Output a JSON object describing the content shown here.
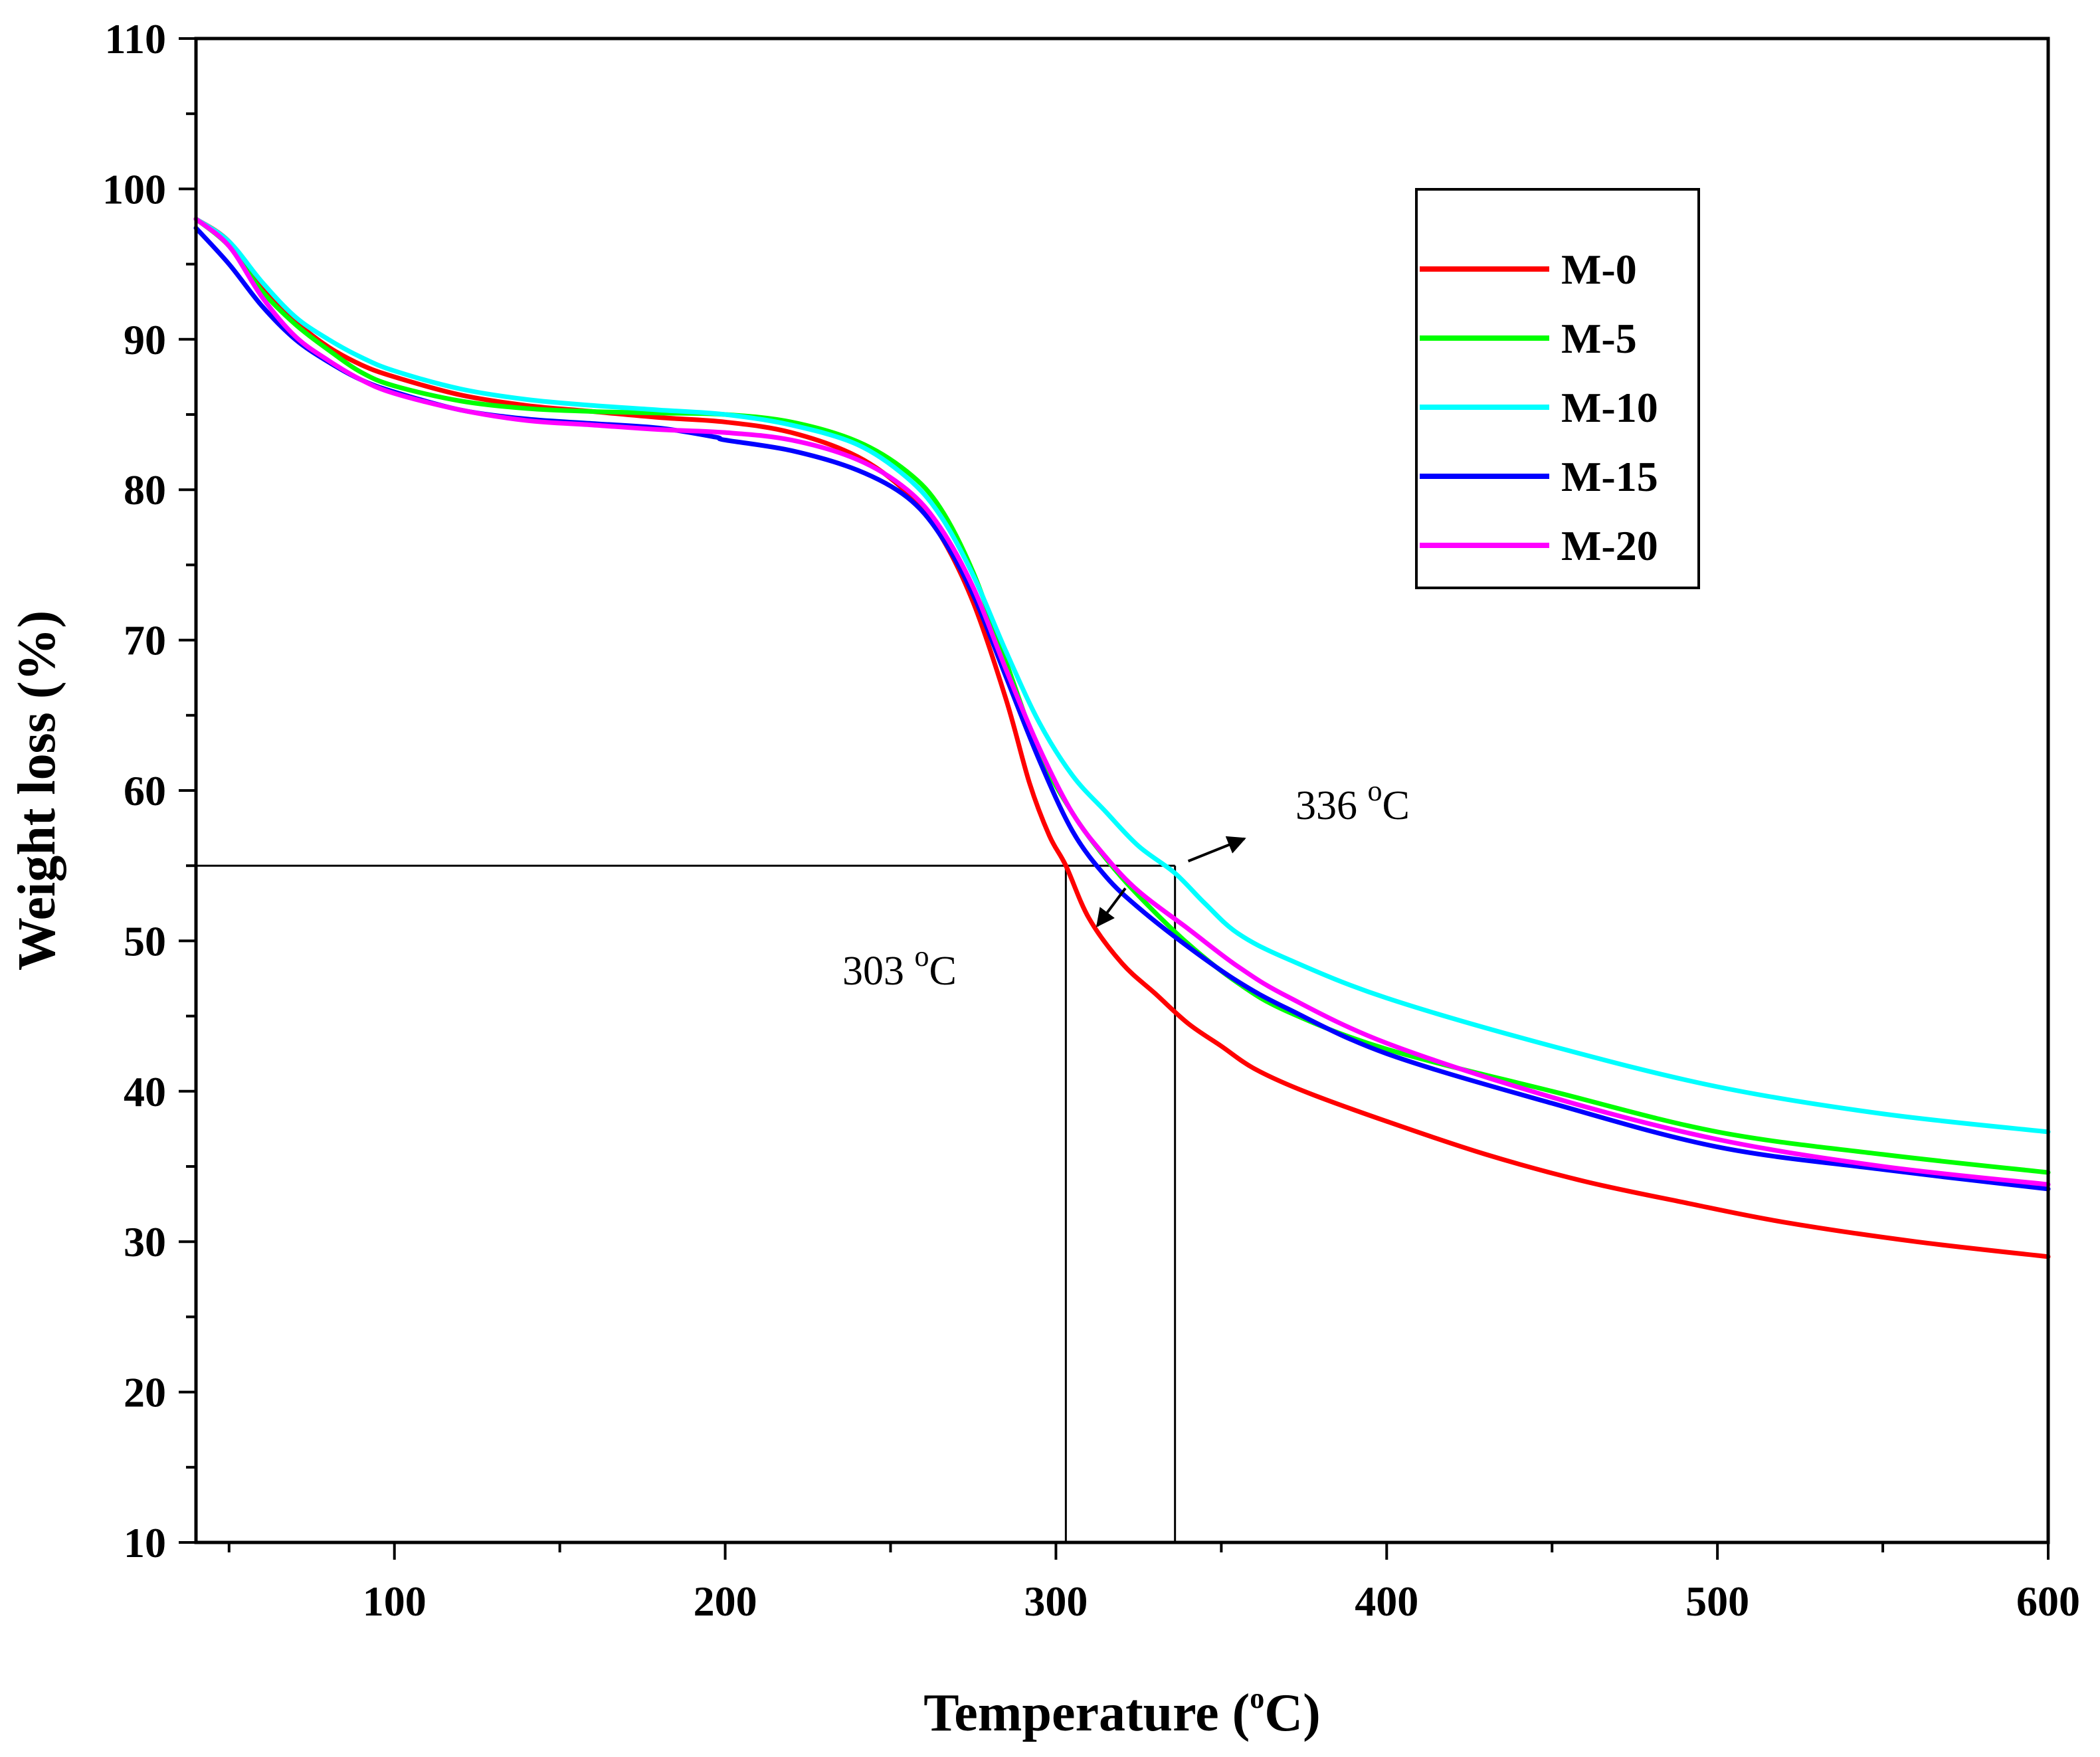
{
  "chart_data": {
    "type": "line",
    "title": "",
    "xlabel": "Temperature (",
    "xlabel_sup": "o",
    "xlabel_end": "C)",
    "ylabel": "Weight loss (%)",
    "xlim": [
      40,
      600
    ],
    "ylim": [
      10,
      110
    ],
    "xticks": [
      100,
      200,
      300,
      400,
      500,
      600
    ],
    "xticks_minor": [
      50,
      150,
      250,
      350,
      450,
      550
    ],
    "yticks": [
      10,
      20,
      30,
      40,
      50,
      60,
      70,
      80,
      90,
      100,
      110
    ],
    "grid": false,
    "legend_position": "top-right",
    "series": [
      {
        "name": "M-0",
        "color": "#ff0000",
        "points": [
          [
            40,
            98
          ],
          [
            50,
            96.5
          ],
          [
            60,
            93.5
          ],
          [
            70,
            91.2
          ],
          [
            80,
            89.5
          ],
          [
            90,
            88.3
          ],
          [
            100,
            87.5
          ],
          [
            120,
            86.3
          ],
          [
            140,
            85.6
          ],
          [
            160,
            85.2
          ],
          [
            180,
            84.8
          ],
          [
            200,
            84.5
          ],
          [
            220,
            83.8
          ],
          [
            240,
            82.2
          ],
          [
            255,
            79.8
          ],
          [
            265,
            77
          ],
          [
            275,
            72.5
          ],
          [
            285,
            66
          ],
          [
            292,
            60.5
          ],
          [
            298,
            57
          ],
          [
            303,
            55
          ],
          [
            310,
            51.5
          ],
          [
            320,
            48.5
          ],
          [
            330,
            46.5
          ],
          [
            340,
            44.5
          ],
          [
            350,
            43
          ],
          [
            360,
            41.5
          ],
          [
            375,
            40
          ],
          [
            400,
            38
          ],
          [
            430,
            35.8
          ],
          [
            460,
            34
          ],
          [
            490,
            32.6
          ],
          [
            520,
            31.3
          ],
          [
            560,
            30
          ],
          [
            600,
            29
          ]
        ]
      },
      {
        "name": "M-5",
        "color": "#00ff00",
        "points": [
          [
            40,
            98
          ],
          [
            50,
            96.2
          ],
          [
            60,
            93.2
          ],
          [
            70,
            91
          ],
          [
            80,
            89.3
          ],
          [
            90,
            87.8
          ],
          [
            100,
            86.9
          ],
          [
            120,
            85.9
          ],
          [
            140,
            85.4
          ],
          [
            160,
            85.2
          ],
          [
            180,
            85.1
          ],
          [
            200,
            85
          ],
          [
            220,
            84.5
          ],
          [
            240,
            83.2
          ],
          [
            255,
            81.2
          ],
          [
            265,
            78.8
          ],
          [
            275,
            74.5
          ],
          [
            285,
            68.5
          ],
          [
            295,
            62.5
          ],
          [
            305,
            58.5
          ],
          [
            315,
            55.5
          ],
          [
            325,
            53
          ],
          [
            340,
            49.8
          ],
          [
            355,
            47.2
          ],
          [
            370,
            45.3
          ],
          [
            400,
            42.8
          ],
          [
            450,
            40
          ],
          [
            500,
            37.3
          ],
          [
            550,
            35.8
          ],
          [
            600,
            34.6
          ]
        ]
      },
      {
        "name": "M-10",
        "color": "#00ffff",
        "points": [
          [
            40,
            98
          ],
          [
            50,
            96.5
          ],
          [
            60,
            93.8
          ],
          [
            70,
            91.5
          ],
          [
            80,
            90
          ],
          [
            90,
            88.8
          ],
          [
            100,
            87.9
          ],
          [
            120,
            86.7
          ],
          [
            140,
            86
          ],
          [
            160,
            85.6
          ],
          [
            180,
            85.3
          ],
          [
            200,
            85
          ],
          [
            220,
            84.3
          ],
          [
            240,
            83
          ],
          [
            255,
            80.8
          ],
          [
            265,
            78.3
          ],
          [
            275,
            74.3
          ],
          [
            285,
            69.2
          ],
          [
            295,
            64.5
          ],
          [
            305,
            61
          ],
          [
            315,
            58.6
          ],
          [
            325,
            56.3
          ],
          [
            336,
            54.5
          ],
          [
            345,
            52.5
          ],
          [
            355,
            50.5
          ],
          [
            370,
            48.8
          ],
          [
            400,
            46.2
          ],
          [
            450,
            43
          ],
          [
            500,
            40.3
          ],
          [
            550,
            38.5
          ],
          [
            600,
            37.3
          ]
        ]
      },
      {
        "name": "M-15",
        "color": "#0000ff",
        "points": [
          [
            40,
            97.4
          ],
          [
            50,
            95
          ],
          [
            60,
            92.2
          ],
          [
            70,
            90
          ],
          [
            80,
            88.5
          ],
          [
            90,
            87.3
          ],
          [
            100,
            86.5
          ],
          [
            120,
            85.3
          ],
          [
            140,
            84.7
          ],
          [
            160,
            84.4
          ],
          [
            180,
            84.1
          ],
          [
            197,
            83.5
          ],
          [
            200,
            83.3
          ],
          [
            220,
            82.6
          ],
          [
            240,
            81.3
          ],
          [
            255,
            79.5
          ],
          [
            265,
            77
          ],
          [
            275,
            73
          ],
          [
            285,
            67.5
          ],
          [
            295,
            62
          ],
          [
            305,
            57.3
          ],
          [
            315,
            54.3
          ],
          [
            325,
            52.2
          ],
          [
            340,
            49.6
          ],
          [
            355,
            47.3
          ],
          [
            370,
            45.5
          ],
          [
            400,
            42.5
          ],
          [
            450,
            39.2
          ],
          [
            500,
            36.3
          ],
          [
            550,
            34.8
          ],
          [
            600,
            33.5
          ]
        ]
      },
      {
        "name": "M-20",
        "color": "#ff00ff",
        "points": [
          [
            40,
            98
          ],
          [
            50,
            96.2
          ],
          [
            60,
            92.8
          ],
          [
            70,
            90.2
          ],
          [
            80,
            88.6
          ],
          [
            90,
            87.3
          ],
          [
            100,
            86.4
          ],
          [
            120,
            85.3
          ],
          [
            140,
            84.6
          ],
          [
            160,
            84.3
          ],
          [
            180,
            84
          ],
          [
            200,
            83.8
          ],
          [
            220,
            83.3
          ],
          [
            240,
            82
          ],
          [
            255,
            80
          ],
          [
            265,
            77.5
          ],
          [
            275,
            73.5
          ],
          [
            285,
            68
          ],
          [
            295,
            62.8
          ],
          [
            305,
            58.5
          ],
          [
            315,
            55.6
          ],
          [
            325,
            53.3
          ],
          [
            340,
            50.8
          ],
          [
            355,
            48.3
          ],
          [
            370,
            46.3
          ],
          [
            400,
            43.2
          ],
          [
            450,
            39.6
          ],
          [
            500,
            36.8
          ],
          [
            550,
            35
          ],
          [
            600,
            33.8
          ]
        ]
      }
    ],
    "reference": {
      "y": 55,
      "x_values": [
        303,
        336
      ]
    },
    "annotations": [
      {
        "name": "annot-303",
        "text": "303 ",
        "sup": "o",
        "tail": "C",
        "arrow_from": [
          321,
          53.5
        ],
        "arrow_to": [
          312.5,
          51
        ]
      },
      {
        "name": "annot-336",
        "text": "336 ",
        "sup": "o",
        "tail": "C",
        "arrow_from": [
          340,
          55.3
        ],
        "arrow_to": [
          357,
          56.8
        ]
      }
    ]
  }
}
